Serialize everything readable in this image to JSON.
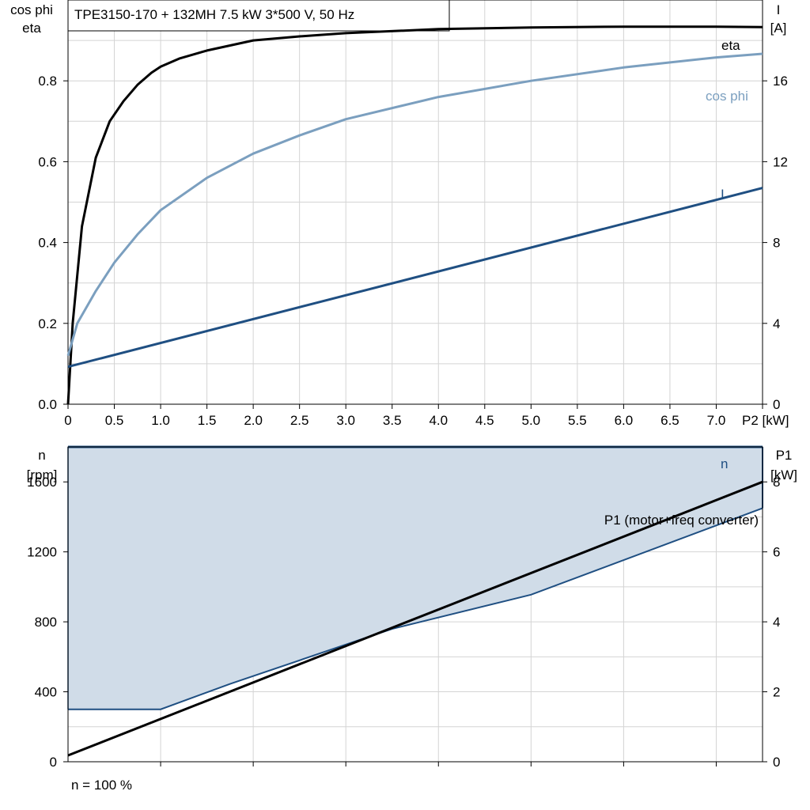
{
  "title": "TPE3150-170 + 132MH   7.5 kW   3*500 V, 50 Hz",
  "footer_note": "n = 100 %",
  "colors": {
    "eta": "#000000",
    "cos_phi": "#7b9fbf",
    "current": "#1f4f82",
    "n": "#1f4f82",
    "n_band_fill": "#d0dce8",
    "p1": "#000000"
  },
  "chart_data": [
    {
      "type": "line",
      "name": "efficiency-chart",
      "xlabel": "P2 [kW]",
      "x_tick_labels": [
        "0",
        "0.5",
        "1.0",
        "1.5",
        "2.0",
        "2.5",
        "3.0",
        "3.5",
        "4.0",
        "4.5",
        "5.0",
        "5.5",
        "6.0",
        "6.5",
        "7.0",
        "P2 [kW]"
      ],
      "xlim": [
        0,
        7.5
      ],
      "ylabel_left_line1": "cos phi",
      "ylabel_left_line2": "eta",
      "ylim_left": [
        0,
        1.0
      ],
      "y_ticks_left": [
        "0.0",
        "0.2",
        "0.4",
        "0.6",
        "0.8"
      ],
      "ylabel_right_line1": "I",
      "ylabel_right_line2": "[A]",
      "ylim_right": [
        0,
        20
      ],
      "y_ticks_right": [
        "0",
        "4",
        "8",
        "12",
        "16"
      ],
      "grid": true,
      "series": [
        {
          "name": "eta",
          "axis": "left",
          "x": [
            0,
            0.05,
            0.15,
            0.3,
            0.45,
            0.6,
            0.75,
            0.9,
            1.0,
            1.2,
            1.5,
            2.0,
            2.5,
            3.0,
            4.0,
            5.0,
            6.0,
            7.0,
            7.5
          ],
          "y": [
            0.0,
            0.2,
            0.44,
            0.61,
            0.7,
            0.75,
            0.79,
            0.82,
            0.835,
            0.855,
            0.875,
            0.9,
            0.91,
            0.918,
            0.928,
            0.932,
            0.934,
            0.934,
            0.933
          ]
        },
        {
          "name": "cos phi",
          "axis": "left",
          "x": [
            0,
            0.1,
            0.3,
            0.5,
            0.75,
            1.0,
            1.5,
            2.0,
            2.5,
            3.0,
            4.0,
            5.0,
            6.0,
            7.0,
            7.5
          ],
          "y": [
            0.12,
            0.2,
            0.28,
            0.35,
            0.42,
            0.48,
            0.56,
            0.62,
            0.665,
            0.705,
            0.76,
            0.8,
            0.833,
            0.858,
            0.867
          ]
        },
        {
          "name": "I",
          "axis": "right",
          "x": [
            0,
            7.5
          ],
          "y": [
            1.85,
            10.7
          ]
        }
      ]
    },
    {
      "type": "line",
      "name": "speed-power-chart",
      "xlim": [
        0,
        7.5
      ],
      "ylabel_left_line1": "n",
      "ylabel_left_line2": "[rpm]",
      "ylim_left": [
        0,
        1800
      ],
      "y_ticks_left": [
        "0",
        "400",
        "800",
        "1200",
        "1600"
      ],
      "ylabel_right_line1": "P1",
      "ylabel_right_line2": "[kW]",
      "ylim_right": [
        0,
        9
      ],
      "y_ticks_right": [
        "0",
        "2",
        "4",
        "6",
        "8"
      ],
      "grid": true,
      "series": [
        {
          "name": "n",
          "axis": "left",
          "x": [
            0,
            7.5
          ],
          "y": [
            1800,
            1800
          ]
        },
        {
          "name": "n_min",
          "axis": "left",
          "x": [
            0,
            1.0,
            1.75,
            3.5,
            5.0,
            7.5
          ],
          "y": [
            300,
            300,
            445,
            760,
            955,
            1450
          ]
        },
        {
          "name": "P1 (motor+freq converter)",
          "axis": "right",
          "x": [
            0,
            7.5
          ],
          "y": [
            0.18,
            8.0
          ]
        }
      ]
    }
  ]
}
